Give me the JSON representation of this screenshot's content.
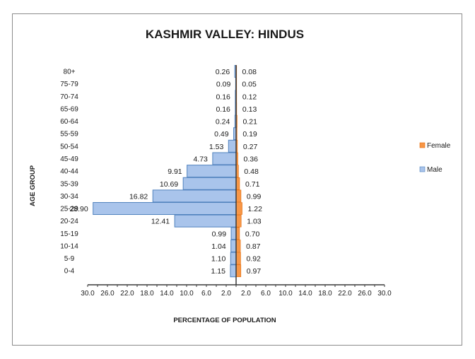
{
  "chart_data": {
    "type": "bar",
    "orientation": "horizontal",
    "title": "KASHMIR VALLEY: HINDUS",
    "xlabel": "PERCENTAGE OF POPULATION",
    "ylabel": "AGE GROUP",
    "xlim": [
      -30,
      30
    ],
    "x_ticks": [
      -30,
      -26,
      -22,
      -18,
      -14,
      -10,
      -6,
      -2,
      2,
      6,
      10,
      14,
      18,
      22,
      26,
      30
    ],
    "x_tick_labels": [
      "30.0",
      "26.0",
      "22.0",
      "18.0",
      "14.0",
      "10.0",
      "6.0",
      "2.0",
      "2.0",
      "6.0",
      "10.0",
      "14.0",
      "18.0",
      "22.0",
      "26.0",
      "30.0"
    ],
    "categories": [
      "80+",
      "75-79",
      "70-74",
      "65-69",
      "60-64",
      "55-59",
      "50-54",
      "45-49",
      "40-44",
      "35-39",
      "30-34",
      "25-29",
      "20-24",
      "15-19",
      "10-14",
      "5-9",
      "0-4"
    ],
    "series": [
      {
        "name": "Male",
        "side": "left",
        "color": "#a9c4eb",
        "border": "#4f81bd",
        "values": [
          0.26,
          0.09,
          0.16,
          0.16,
          0.24,
          0.49,
          1.53,
          4.73,
          9.91,
          10.69,
          16.82,
          28.9,
          12.41,
          0.99,
          1.04,
          1.1,
          1.15
        ],
        "labels": [
          "0.26",
          "0.09",
          "0.16",
          "0.16",
          "0.24",
          "0.49",
          "1.53",
          "4.73",
          "9.91",
          "10.69",
          "16.82",
          "28.90",
          "12.41",
          "0.99",
          "1.04",
          "1.10",
          "1.15"
        ]
      },
      {
        "name": "Female",
        "side": "right",
        "color": "#f79646",
        "border": "#e46c0a",
        "values": [
          0.08,
          0.05,
          0.12,
          0.13,
          0.21,
          0.19,
          0.27,
          0.36,
          0.48,
          0.71,
          0.99,
          1.22,
          1.03,
          0.7,
          0.87,
          0.92,
          0.97
        ],
        "labels": [
          "0.08",
          "0.05",
          "0.12",
          "0.13",
          "0.21",
          "0.19",
          "0.27",
          "0.36",
          "0.48",
          "0.71",
          "0.99",
          "1.22",
          "1.03",
          "0.70",
          "0.87",
          "0.92",
          "0.97"
        ]
      }
    ],
    "legend": {
      "position": "right",
      "entries": [
        "Female",
        "Male"
      ]
    },
    "grid": false
  }
}
